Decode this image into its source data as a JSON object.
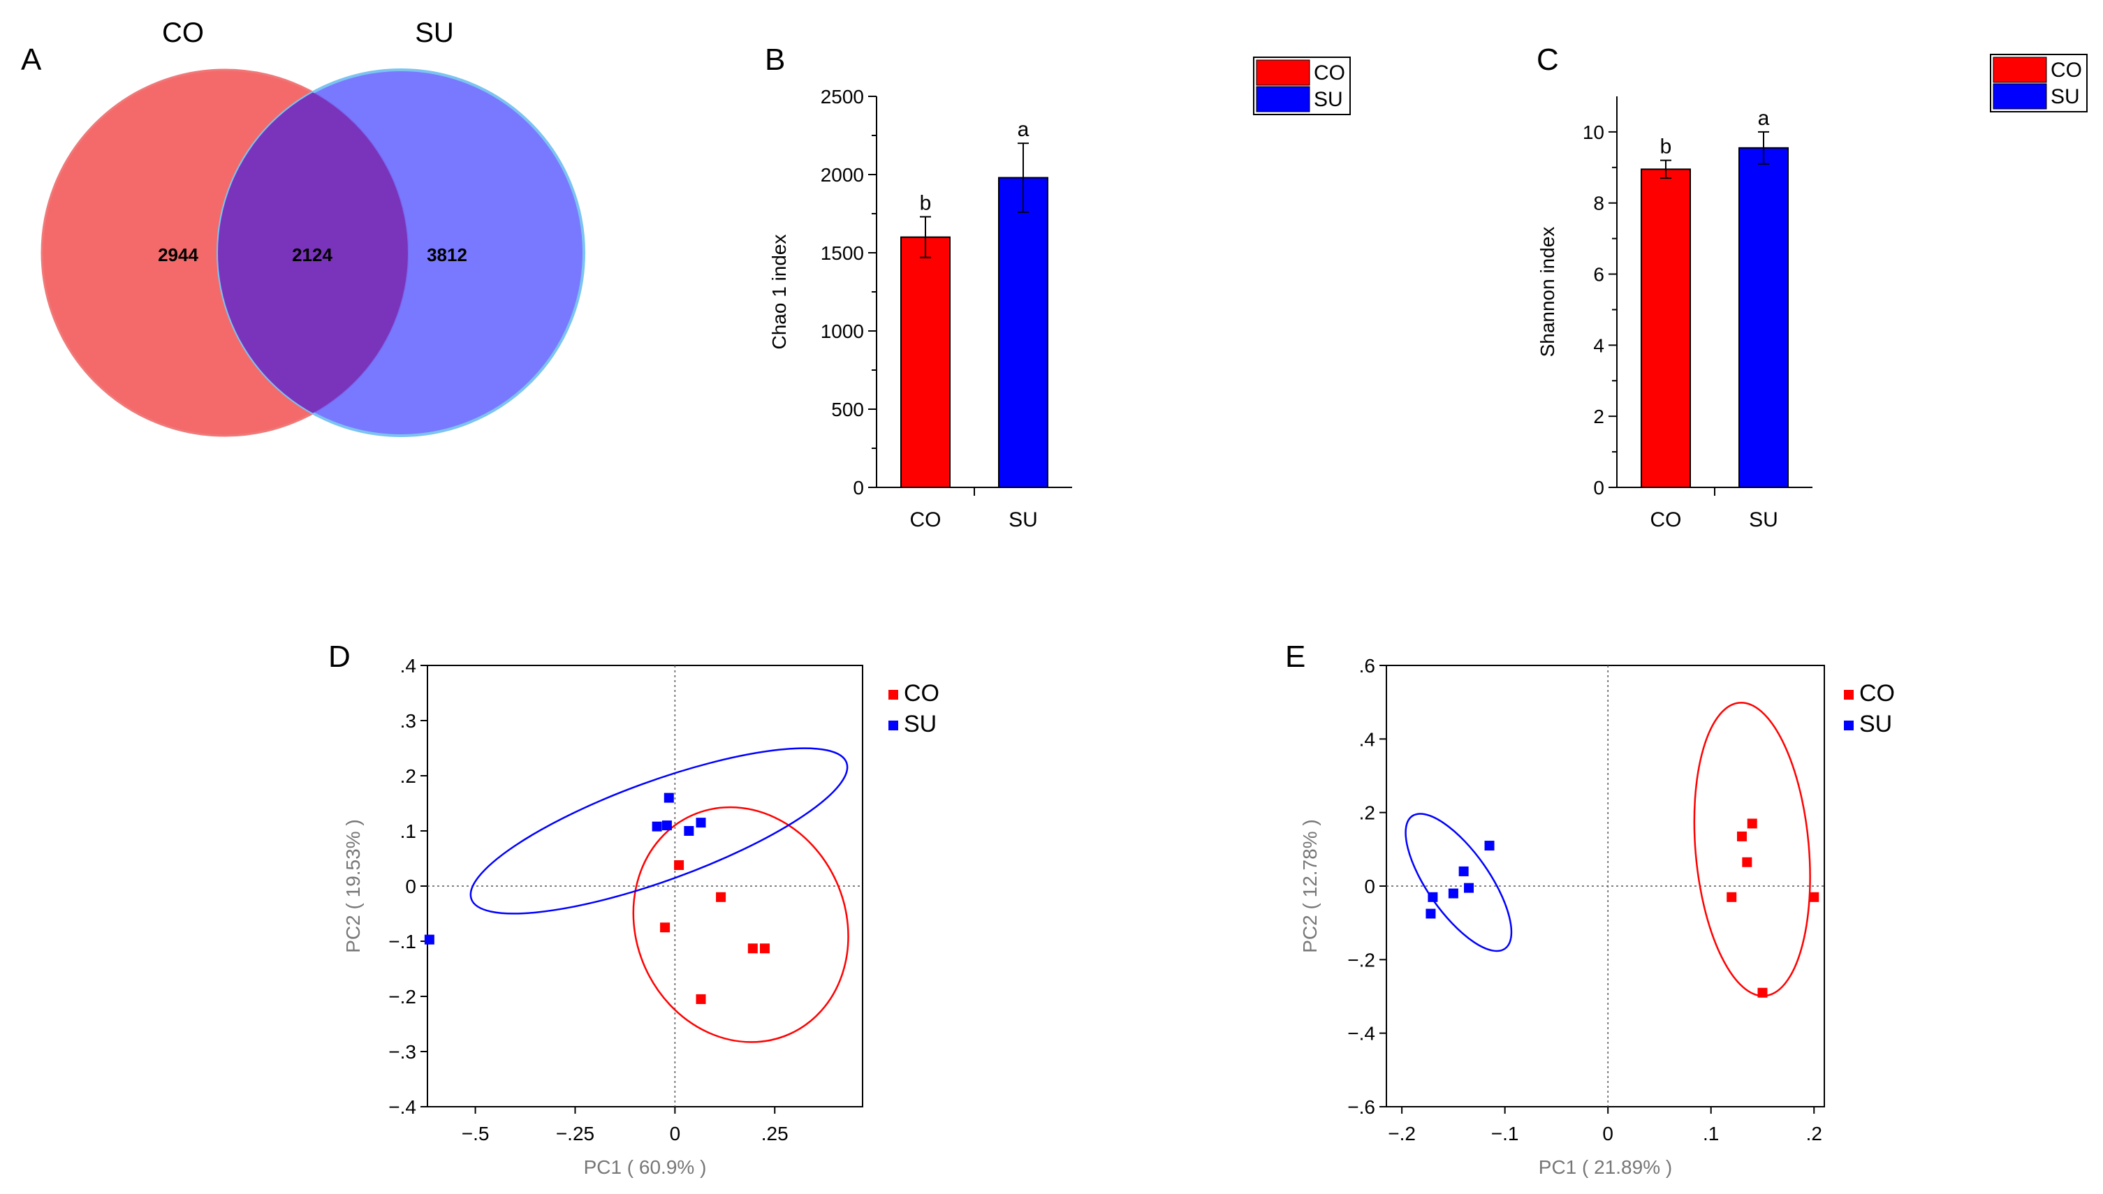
{
  "chart_data": [
    {
      "id": "A",
      "type": "venn",
      "panel_label": "A",
      "sets": [
        {
          "name": "CO",
          "color": "#f46a6a"
        },
        {
          "name": "SU",
          "color": "#6a6aff"
        }
      ],
      "values": {
        "CO_only": "2944",
        "both": "2124",
        "SU_only": "3812"
      }
    },
    {
      "id": "B",
      "type": "bar",
      "panel_label": "B",
      "ylabel": "Chao 1 index",
      "ylim": [
        0,
        2500
      ],
      "yticks": [
        0,
        500,
        1000,
        1500,
        2000,
        2500
      ],
      "categories": [
        "CO",
        "SU"
      ],
      "values": [
        1600,
        1980
      ],
      "errors": [
        130,
        220
      ],
      "sig_letters": [
        "b",
        "a"
      ],
      "colors": [
        "#ff0000",
        "#0000ff"
      ],
      "legend": [
        {
          "label": "CO",
          "color": "#ff0000"
        },
        {
          "label": "SU",
          "color": "#0000ff"
        }
      ]
    },
    {
      "id": "C",
      "type": "bar",
      "panel_label": "C",
      "ylabel": "Shannon index",
      "ylim": [
        0,
        11
      ],
      "yticks": [
        0,
        2,
        4,
        6,
        8,
        10
      ],
      "categories": [
        "CO",
        "SU"
      ],
      "values": [
        8.95,
        9.55
      ],
      "errors": [
        0.25,
        0.45
      ],
      "sig_letters": [
        "b",
        "a"
      ],
      "colors": [
        "#ff0000",
        "#0000ff"
      ],
      "legend": [
        {
          "label": "CO",
          "color": "#ff0000"
        },
        {
          "label": "SU",
          "color": "#0000ff"
        }
      ]
    },
    {
      "id": "D",
      "type": "scatter",
      "panel_label": "D",
      "xlabel": "PC1 ( 60.9% )",
      "ylabel": "PC2 ( 19.53% )",
      "xlim": [
        -0.62,
        0.47
      ],
      "ylim": [
        -0.4,
        0.4
      ],
      "xticks": [
        -0.5,
        -0.25,
        0,
        0.25
      ],
      "yticks": [
        -0.4,
        -0.3,
        -0.2,
        -0.1,
        0,
        0.1,
        0.2,
        0.3,
        0.4
      ],
      "series": [
        {
          "name": "CO",
          "color": "#ff0000",
          "points": [
            [
              0.01,
              0.038
            ],
            [
              0.115,
              -0.02
            ],
            [
              -0.025,
              -0.075
            ],
            [
              0.195,
              -0.113
            ],
            [
              0.225,
              -0.113
            ],
            [
              0.065,
              -0.205
            ]
          ],
          "ellipse": {
            "cx": 0.165,
            "cy": -0.07,
            "rx": 0.3,
            "ry": 0.19,
            "angle": -66
          }
        },
        {
          "name": "SU",
          "color": "#0000ff",
          "points": [
            [
              -0.015,
              0.16
            ],
            [
              -0.045,
              0.108
            ],
            [
              -0.02,
              0.11
            ],
            [
              0.035,
              0.1
            ],
            [
              0.065,
              0.115
            ],
            [
              -0.615,
              -0.097
            ]
          ],
          "ellipse": {
            "cx": -0.04,
            "cy": 0.1,
            "rx": 0.5,
            "ry": 0.09,
            "angle": 20
          }
        }
      ]
    },
    {
      "id": "E",
      "type": "scatter",
      "panel_label": "E",
      "xlabel": "PC1 ( 21.89% )",
      "ylabel": "PC2 ( 12.78% )",
      "xlim": [
        -0.215,
        0.21
      ],
      "ylim": [
        -0.6,
        0.6
      ],
      "xticks": [
        -0.2,
        -0.1,
        0,
        0.1,
        0.2
      ],
      "yticks": [
        -0.6,
        -0.4,
        -0.2,
        0,
        0.2,
        0.4,
        0.6
      ],
      "series": [
        {
          "name": "CO",
          "color": "#ff0000",
          "points": [
            [
              0.14,
              0.17
            ],
            [
              0.13,
              0.135
            ],
            [
              0.135,
              0.065
            ],
            [
              0.12,
              -0.03
            ],
            [
              0.2,
              -0.03
            ],
            [
              0.15,
              -0.29
            ]
          ],
          "ellipse": {
            "cx": 0.14,
            "cy": 0.1,
            "rx": 0.055,
            "ry": 0.4,
            "angle": 5
          }
        },
        {
          "name": "SU",
          "color": "#0000ff",
          "points": [
            [
              -0.115,
              0.11
            ],
            [
              -0.14,
              0.04
            ],
            [
              -0.135,
              -0.005
            ],
            [
              -0.15,
              -0.02
            ],
            [
              -0.17,
              -0.03
            ],
            [
              -0.172,
              -0.075
            ]
          ],
          "ellipse": {
            "cx": -0.145,
            "cy": 0.01,
            "rx": 0.03,
            "ry": 0.22,
            "angle": 35
          }
        }
      ]
    }
  ]
}
